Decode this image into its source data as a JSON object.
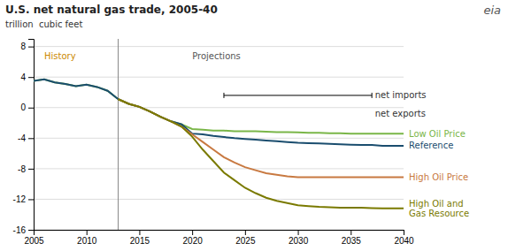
{
  "chart_data": {
    "type": "line",
    "title": "U.S. net natural gas trade, 2005-40",
    "y_label": "trillion  cubic feet",
    "logo_text": "eia",
    "x": [
      2005,
      2006,
      2007,
      2008,
      2009,
      2010,
      2011,
      2012,
      2013,
      2014,
      2015,
      2016,
      2017,
      2018,
      2019,
      2020,
      2021,
      2022,
      2023,
      2024,
      2025,
      2026,
      2027,
      2028,
      2029,
      2030,
      2031,
      2032,
      2033,
      2034,
      2035,
      2036,
      2037,
      2038,
      2039,
      2040
    ],
    "xlim": [
      2005,
      2040
    ],
    "xticks": [
      2005,
      2010,
      2015,
      2020,
      2025,
      2030,
      2035,
      2040
    ],
    "ylim": [
      -16,
      9
    ],
    "yticks": [
      -16,
      -12,
      -8,
      -4,
      0,
      4,
      8
    ],
    "grid": true,
    "vline": 2013,
    "bracket": {
      "x": [
        2023,
        2037
      ],
      "y": 1.6
    },
    "annotations": [
      {
        "text": "History",
        "x": 2007.5,
        "y": 6.8,
        "color": "#cc8800"
      },
      {
        "text": "Projections",
        "x": 2020,
        "y": 6.8,
        "color": "#555555"
      },
      {
        "text": "net imports",
        "x": 2037.3,
        "y": 1.6,
        "color": "#333333"
      },
      {
        "text": "net exports",
        "x": 2037.3,
        "y": -0.8,
        "color": "#333333"
      }
    ],
    "series": [
      {
        "name": "Low Oil Price",
        "color": "#7ab648",
        "values": [
          3.5,
          3.7,
          3.3,
          3.1,
          2.8,
          3.0,
          2.7,
          2.2,
          1.1,
          0.5,
          0.1,
          -0.5,
          -1.2,
          -1.8,
          -2.2,
          -2.8,
          -2.9,
          -3.0,
          -3.0,
          -3.1,
          -3.1,
          -3.1,
          -3.15,
          -3.2,
          -3.2,
          -3.25,
          -3.3,
          -3.3,
          -3.35,
          -3.35,
          -3.4,
          -3.4,
          -3.4,
          -3.4,
          -3.4,
          -3.4
        ]
      },
      {
        "name": "Reference",
        "color": "#1a4d6e",
        "values": [
          3.5,
          3.7,
          3.3,
          3.1,
          2.8,
          3.0,
          2.7,
          2.2,
          1.1,
          0.5,
          0.1,
          -0.5,
          -1.2,
          -1.8,
          -2.2,
          -3.4,
          -3.5,
          -3.7,
          -3.85,
          -4.0,
          -4.1,
          -4.2,
          -4.3,
          -4.4,
          -4.5,
          -4.6,
          -4.65,
          -4.7,
          -4.75,
          -4.8,
          -4.85,
          -4.9,
          -4.9,
          -5.0,
          -5.0,
          -5.0
        ]
      },
      {
        "name": "High Oil Price",
        "color": "#c87941",
        "values": [
          null,
          null,
          null,
          null,
          null,
          null,
          null,
          null,
          1.1,
          0.5,
          0.1,
          -0.5,
          -1.2,
          -1.8,
          -2.5,
          -3.5,
          -4.5,
          -5.5,
          -6.5,
          -7.2,
          -7.8,
          -8.2,
          -8.6,
          -8.8,
          -9.0,
          -9.1,
          -9.1,
          -9.1,
          -9.1,
          -9.1,
          -9.1,
          -9.1,
          -9.1,
          -9.1,
          -9.1,
          -9.1
        ]
      },
      {
        "name": "High Oil and\nGas Resource",
        "color": "#7a7a00",
        "values": [
          null,
          null,
          null,
          null,
          null,
          null,
          null,
          null,
          1.1,
          0.5,
          0.1,
          -0.5,
          -1.2,
          -1.8,
          -2.5,
          -3.8,
          -5.5,
          -7.0,
          -8.5,
          -9.5,
          -10.5,
          -11.2,
          -11.8,
          -12.2,
          -12.5,
          -12.8,
          -12.9,
          -13.0,
          -13.05,
          -13.1,
          -13.1,
          -13.1,
          -13.15,
          -13.2,
          -13.2,
          -13.2
        ]
      }
    ]
  }
}
